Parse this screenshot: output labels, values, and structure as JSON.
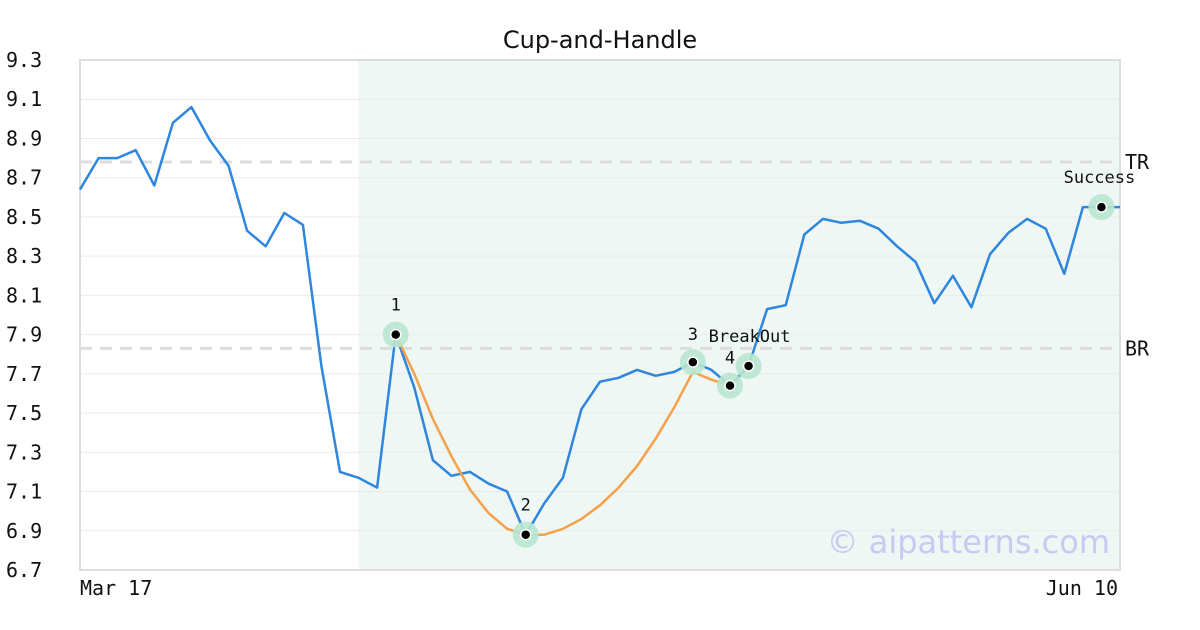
{
  "chart_data": {
    "type": "line",
    "title": "Cup-and-Handle",
    "xlabel": "",
    "ylabel": "",
    "ylim": [
      6.7,
      9.3
    ],
    "y_ticks": [
      "9.3",
      "9.1",
      "8.9",
      "8.7",
      "8.5",
      "8.3",
      "8.1",
      "7.9",
      "7.7",
      "7.5",
      "7.3",
      "7.1",
      "6.9",
      "6.7"
    ],
    "x_tick_labels": [
      "Mar 17",
      "Jun 10"
    ],
    "grid": true,
    "colors": {
      "price": "#2e86de",
      "cup_fit": "#f5a04a",
      "highlight": "#eef7f3",
      "marker_halo": "#b8e6cf",
      "level_line": "#dddddd",
      "watermark": "#c9c9f3"
    },
    "highlight_index_range": [
      15,
      56
    ],
    "series": [
      {
        "role": "price",
        "values": [
          8.64,
          8.8,
          8.8,
          8.84,
          8.66,
          8.98,
          9.06,
          8.89,
          8.76,
          8.43,
          8.35,
          8.52,
          8.46,
          7.74,
          7.2,
          7.17,
          7.12,
          7.9,
          7.63,
          7.26,
          7.18,
          7.2,
          7.14,
          7.1,
          6.88,
          7.04,
          7.17,
          7.52,
          7.66,
          7.68,
          7.72,
          7.69,
          7.71,
          7.76,
          7.72,
          7.64,
          7.74,
          8.03,
          8.05,
          8.41,
          8.49,
          8.47,
          8.48,
          8.44,
          8.35,
          8.27,
          8.06,
          8.2,
          8.04,
          8.31,
          8.42,
          8.49,
          8.44,
          8.21,
          8.55,
          8.55,
          8.55
        ]
      },
      {
        "role": "cup_fit",
        "x_index": [
          17,
          18,
          19,
          20,
          21,
          22,
          23,
          24,
          25,
          26,
          27,
          28,
          29,
          30,
          31,
          32,
          33,
          34,
          35
        ],
        "values": [
          7.9,
          7.7,
          7.47,
          7.28,
          7.11,
          6.99,
          6.91,
          6.88,
          6.88,
          6.91,
          6.96,
          7.03,
          7.12,
          7.23,
          7.37,
          7.53,
          7.71,
          7.67,
          7.64
        ]
      }
    ],
    "levels": [
      {
        "label": "TR",
        "value": 8.78
      },
      {
        "label": "BR",
        "value": 7.83
      }
    ],
    "points": [
      {
        "label": "1",
        "index": 17,
        "value": 7.9
      },
      {
        "label": "2",
        "index": 24,
        "value": 6.88
      },
      {
        "label": "3",
        "index": 33,
        "value": 7.76
      },
      {
        "label": "4",
        "index": 35,
        "value": 7.64
      },
      {
        "label": "BreakOut",
        "index": 36,
        "value": 7.74
      },
      {
        "label": "Success",
        "index": 55,
        "value": 8.55
      }
    ],
    "watermark": "© aipatterns.com"
  }
}
